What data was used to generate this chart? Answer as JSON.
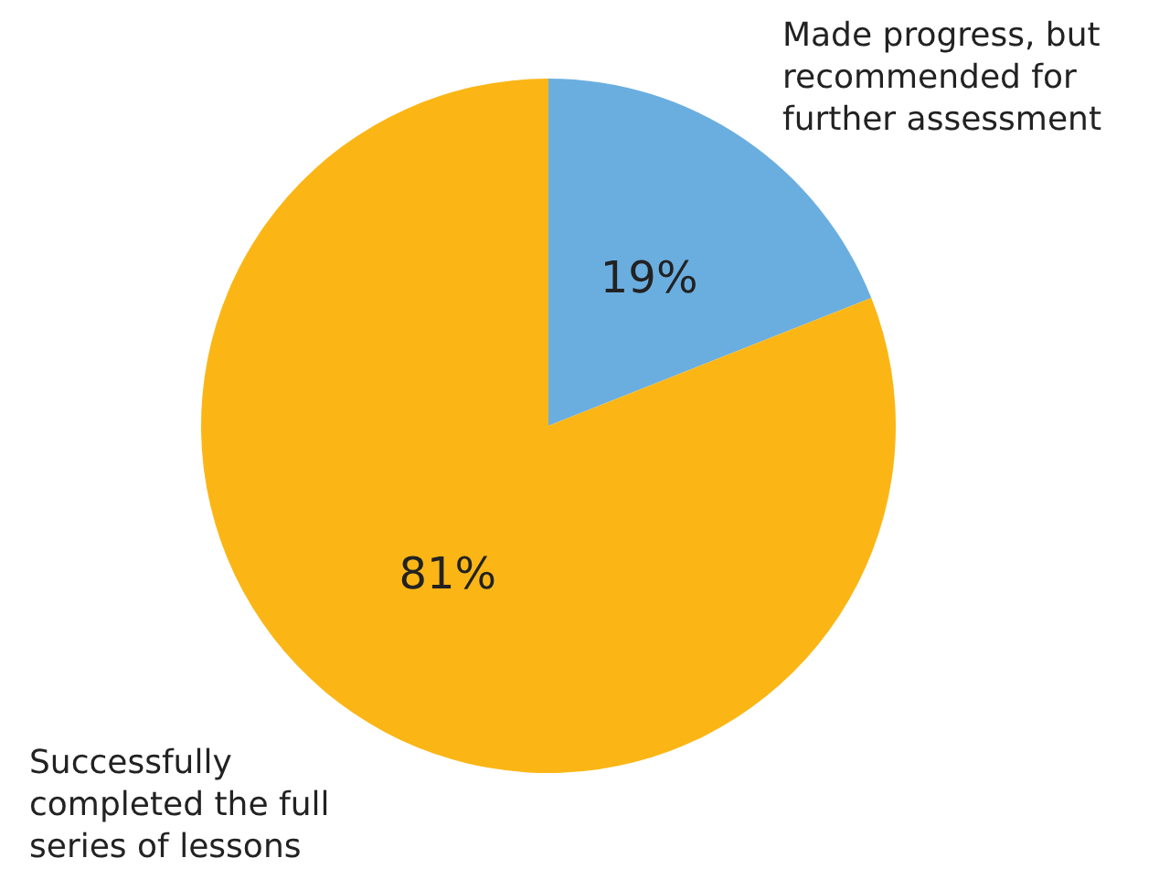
{
  "chart_data": {
    "type": "pie",
    "categories": [
      "Made progress, but recommended for further assessment",
      "Successfully completed the full series of lessons"
    ],
    "values": [
      19,
      81
    ],
    "colors": [
      "#6aaee0",
      "#fbb616"
    ],
    "value_labels": [
      "19%",
      "81%"
    ]
  }
}
